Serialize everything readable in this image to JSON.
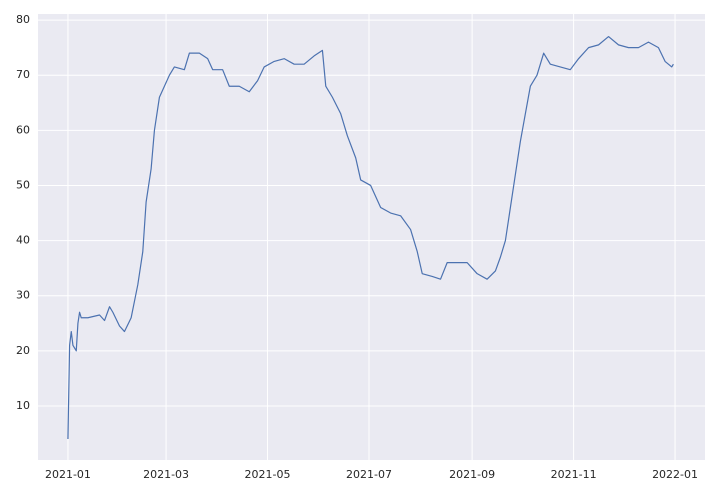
{
  "chart_data": {
    "type": "line",
    "x": [
      "2021-01-01",
      "2021-01-02",
      "2021-01-03",
      "2021-01-04",
      "2021-01-06",
      "2021-01-07",
      "2021-01-08",
      "2021-01-09",
      "2021-01-13",
      "2021-01-20",
      "2021-01-23",
      "2021-01-26",
      "2021-01-28",
      "2021-02-01",
      "2021-02-04",
      "2021-02-08",
      "2021-02-12",
      "2021-02-15",
      "2021-02-17",
      "2021-02-20",
      "2021-02-22",
      "2021-02-25",
      "2021-02-28",
      "2021-03-03",
      "2021-03-06",
      "2021-03-12",
      "2021-03-15",
      "2021-03-21",
      "2021-03-26",
      "2021-03-29",
      "2021-04-04",
      "2021-04-08",
      "2021-04-14",
      "2021-04-20",
      "2021-04-25",
      "2021-04-29",
      "2021-05-05",
      "2021-05-11",
      "2021-05-17",
      "2021-05-23",
      "2021-05-29",
      "2021-06-03",
      "2021-06-05",
      "2021-06-09",
      "2021-06-14",
      "2021-06-18",
      "2021-06-23",
      "2021-06-26",
      "2021-07-02",
      "2021-07-08",
      "2021-07-14",
      "2021-07-20",
      "2021-07-26",
      "2021-07-30",
      "2021-08-02",
      "2021-08-08",
      "2021-08-13",
      "2021-08-17",
      "2021-08-23",
      "2021-08-29",
      "2021-09-04",
      "2021-09-10",
      "2021-09-15",
      "2021-09-18",
      "2021-09-21",
      "2021-09-24",
      "2021-09-27",
      "2021-09-30",
      "2021-10-03",
      "2021-10-06",
      "2021-10-10",
      "2021-10-14",
      "2021-10-18",
      "2021-10-24",
      "2021-10-30",
      "2021-11-04",
      "2021-11-10",
      "2021-11-16",
      "2021-11-22",
      "2021-11-28",
      "2021-12-04",
      "2021-12-10",
      "2021-12-16",
      "2021-12-22",
      "2021-12-26",
      "2021-12-30",
      "2021-12-31"
    ],
    "series": [
      {
        "color": "#4c72b0",
        "values": [
          4,
          21,
          23.5,
          21,
          20,
          25,
          27,
          26,
          26,
          26.5,
          25.5,
          28,
          27,
          24.5,
          23.5,
          26,
          32,
          38,
          47,
          53,
          60,
          66,
          68,
          70,
          71.5,
          71,
          74,
          74,
          73,
          71,
          71,
          68,
          68,
          67,
          69,
          71.5,
          72.5,
          73,
          72,
          72,
          73.5,
          74.5,
          68,
          66,
          63,
          59,
          55,
          51,
          50,
          46,
          45,
          44.5,
          42,
          38,
          34,
          33.5,
          33,
          36,
          36,
          36,
          34,
          33,
          34.5,
          37,
          40,
          46,
          52,
          58,
          63,
          68,
          70,
          74,
          72,
          71.5,
          71,
          73,
          75,
          75.5,
          77,
          75.5,
          75,
          75,
          76,
          75,
          72.5,
          71.5,
          72
        ]
      }
    ],
    "xlim": [
      "2020-12-14",
      "2022-01-19"
    ],
    "xticks": [
      {
        "value": "2021-01-01",
        "label": "2021-01"
      },
      {
        "value": "2021-03-01",
        "label": "2021-03"
      },
      {
        "value": "2021-05-01",
        "label": "2021-05"
      },
      {
        "value": "2021-07-01",
        "label": "2021-07"
      },
      {
        "value": "2021-09-01",
        "label": "2021-09"
      },
      {
        "value": "2021-11-01",
        "label": "2021-11"
      },
      {
        "value": "2022-01-01",
        "label": "2022-01"
      }
    ],
    "ylim": [
      0.2,
      81.1
    ],
    "yticks": [
      10,
      20,
      30,
      40,
      50,
      60,
      70,
      80
    ],
    "grid": true
  }
}
